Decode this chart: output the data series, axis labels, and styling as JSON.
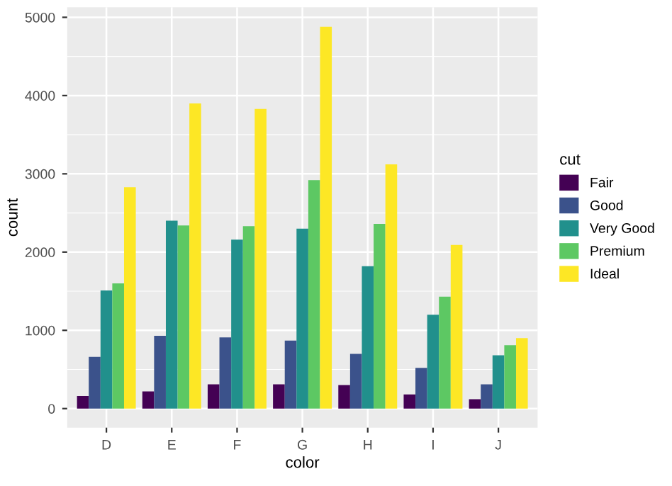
{
  "chart_data": {
    "type": "bar",
    "xlabel": "color",
    "ylabel": "count",
    "legend_title": "cut",
    "categories": [
      "D",
      "E",
      "F",
      "G",
      "H",
      "I",
      "J"
    ],
    "series": [
      {
        "name": "Fair",
        "color": "#440154",
        "values": [
          160,
          220,
          310,
          310,
          300,
          180,
          120
        ]
      },
      {
        "name": "Good",
        "color": "#3b528b",
        "values": [
          660,
          930,
          910,
          870,
          700,
          520,
          310
        ]
      },
      {
        "name": "Very Good",
        "color": "#21908c",
        "values": [
          1510,
          2400,
          2160,
          2300,
          1820,
          1200,
          680
        ]
      },
      {
        "name": "Premium",
        "color": "#5dc863",
        "values": [
          1600,
          2340,
          2330,
          2920,
          2360,
          1430,
          810
        ]
      },
      {
        "name": "Ideal",
        "color": "#fde725",
        "values": [
          2830,
          3900,
          3830,
          4880,
          3120,
          2090,
          900
        ]
      }
    ],
    "ylim": [
      -244,
      5128
    ],
    "yticks": [
      0,
      1000,
      2000,
      3000,
      4000,
      5000
    ],
    "grid": true,
    "legend": "right"
  }
}
